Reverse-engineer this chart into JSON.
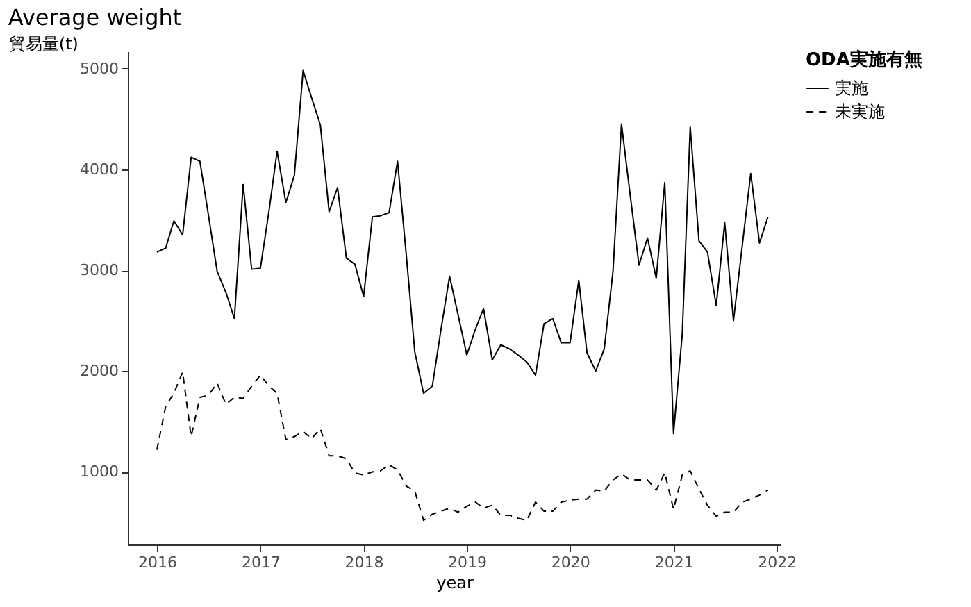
{
  "chart_data": {
    "type": "line",
    "title": "Average weight",
    "xlabel": "year",
    "ylabel": "貿易量(t)",
    "legend_title": "ODA実施有無",
    "x": [
      "2016-01",
      "2016-02",
      "2016-03",
      "2016-04",
      "2016-05",
      "2016-06",
      "2016-07",
      "2016-08",
      "2016-09",
      "2016-10",
      "2016-11",
      "2016-12",
      "2017-01",
      "2017-02",
      "2017-03",
      "2017-04",
      "2017-05",
      "2017-06",
      "2017-07",
      "2017-08",
      "2017-09",
      "2017-10",
      "2017-11",
      "2017-12",
      "2018-01",
      "2018-02",
      "2018-03",
      "2018-04",
      "2018-05",
      "2018-06",
      "2018-07",
      "2018-08",
      "2018-09",
      "2018-10",
      "2018-11",
      "2018-12",
      "2019-01",
      "2019-02",
      "2019-03",
      "2019-04",
      "2019-05",
      "2019-06",
      "2019-07",
      "2019-08",
      "2019-09",
      "2019-10",
      "2019-11",
      "2019-12",
      "2020-01",
      "2020-02",
      "2020-03",
      "2020-04",
      "2020-05",
      "2020-06",
      "2020-07",
      "2020-08",
      "2020-09",
      "2020-10",
      "2020-11",
      "2020-12",
      "2021-01",
      "2021-02",
      "2021-03",
      "2021-04",
      "2021-05",
      "2021-06",
      "2021-07",
      "2021-08",
      "2021-09",
      "2021-10",
      "2021-11",
      "2021-12"
    ],
    "series": [
      {
        "name": "実施",
        "color": "#000000",
        "line_style": "solid",
        "values": [
          3180,
          3220,
          3490,
          3350,
          4120,
          4080,
          3550,
          2990,
          2780,
          2520,
          3850,
          3010,
          3020,
          3600,
          4180,
          3670,
          3940,
          4980,
          4710,
          4440,
          3580,
          3820,
          3120,
          3060,
          2740,
          3530,
          3540,
          3570,
          4080,
          3150,
          2190,
          1780,
          1850,
          2400,
          2940,
          2560,
          2160,
          2420,
          2620,
          2110,
          2260,
          2220,
          2160,
          2090,
          1960,
          2470,
          2520,
          2280,
          2280,
          2900,
          2180,
          2000,
          2220,
          2990,
          4450,
          3740,
          3050,
          3320,
          2920,
          3870,
          1380,
          2370,
          4420,
          3290,
          3180,
          2650,
          3470,
          2500,
          3240,
          3960,
          3270,
          3530
        ]
      },
      {
        "name": "未実施",
        "color": "#000000",
        "line_style": "dashed",
        "values": [
          1220,
          1650,
          1780,
          1990,
          1350,
          1740,
          1760,
          1880,
          1670,
          1740,
          1730,
          1850,
          1960,
          1850,
          1780,
          1320,
          1350,
          1400,
          1330,
          1430,
          1160,
          1160,
          1130,
          990,
          970,
          1000,
          1010,
          1070,
          1020,
          860,
          810,
          520,
          580,
          610,
          640,
          600,
          660,
          700,
          640,
          670,
          570,
          570,
          540,
          520,
          700,
          610,
          610,
          700,
          720,
          730,
          730,
          820,
          810,
          920,
          980,
          920,
          920,
          920,
          820,
          990,
          630,
          970,
          1010,
          830,
          670,
          560,
          600,
          600,
          700,
          730,
          770,
          820
        ]
      }
    ],
    "xlim": [
      "2015-09-20",
      "2022-01-15"
    ],
    "xticks": [
      "2016",
      "2017",
      "2018",
      "2019",
      "2020",
      "2021",
      "2022"
    ],
    "ylim": [
      280,
      5170
    ],
    "yticks": [
      1000,
      2000,
      3000,
      4000,
      5000
    ],
    "grid": false,
    "legend": "right"
  }
}
